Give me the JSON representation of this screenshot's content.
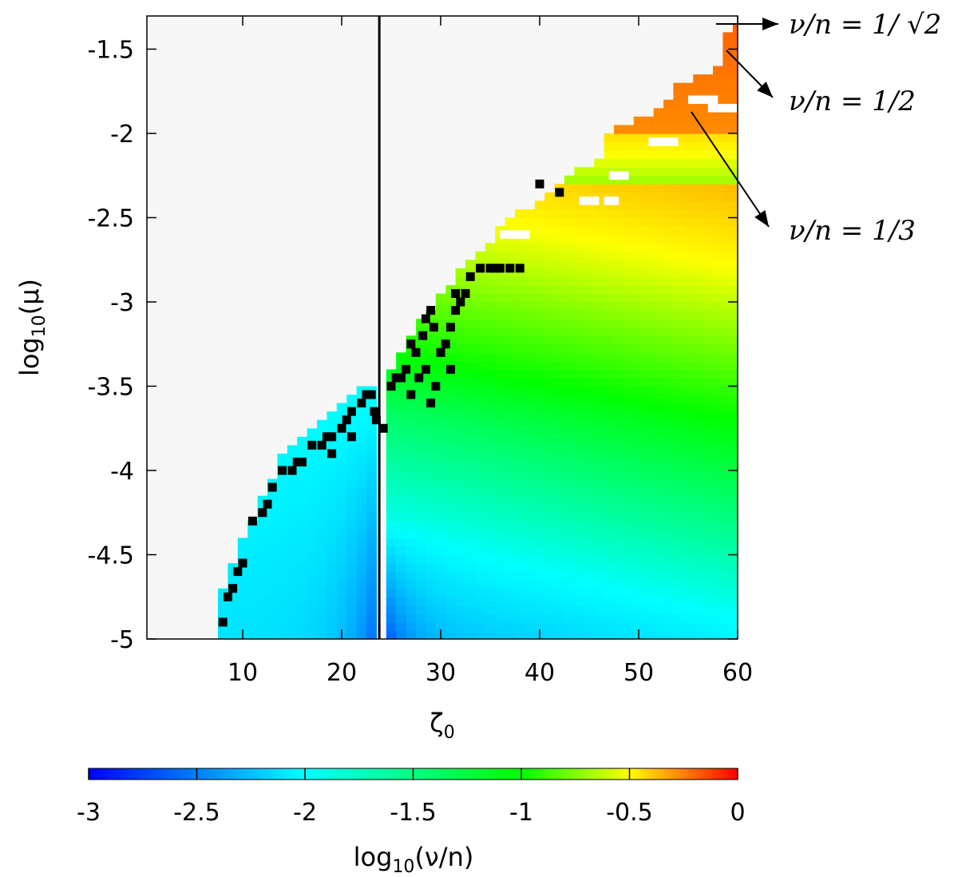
{
  "chart_data": {
    "type": "heatmap",
    "xlabel_main": "ζ",
    "xlabel_sub": "0",
    "ylabel_pre": "log",
    "ylabel_sub": "10",
    "ylabel_post": "(μ)",
    "xlim": [
      0.5,
      60
    ],
    "ylim": [
      -5,
      -1.3
    ],
    "x_ticks": [
      10,
      20,
      30,
      40,
      50,
      60
    ],
    "x_tick_labels": [
      "10",
      "20",
      "30",
      "40",
      "50",
      "60"
    ],
    "y_ticks": [
      -1.5,
      -2,
      -2.5,
      -3,
      -3.5,
      -4,
      -4.5,
      -5
    ],
    "y_tick_labels": [
      "-1.5",
      "-2",
      "-2.5",
      "-3",
      "-3.5",
      "-4",
      "-4.5",
      "-5"
    ],
    "colorbar": {
      "label_pre": "log",
      "label_sub": "10",
      "label_post": "(ν/n)",
      "range": [
        -3,
        0
      ],
      "ticks": [
        -3,
        -2.5,
        -2,
        -1.5,
        -1,
        -0.5,
        0
      ],
      "tick_labels": [
        "-3",
        "-2.5",
        "-2",
        "-1.5",
        "-1",
        "-0.5",
        "0"
      ],
      "colormap": [
        "#0000ff",
        "#00ffff",
        "#00ff00",
        "#ffff00",
        "#ff0000"
      ]
    },
    "vertical_line_x": 23.8,
    "left_region_x_range": [
      7,
      23.8
    ],
    "right_region_x_range": [
      24.5,
      60
    ],
    "left_boundary_points": [
      [
        7,
        -5
      ],
      [
        8,
        -4.75
      ],
      [
        9,
        -4.6
      ],
      [
        10,
        -4.45
      ],
      [
        11,
        -4.35
      ],
      [
        12,
        -4.2
      ],
      [
        13,
        -4.1
      ],
      [
        14,
        -3.95
      ],
      [
        15,
        -3.9
      ],
      [
        16,
        -3.85
      ],
      [
        17,
        -3.8
      ],
      [
        18,
        -3.75
      ],
      [
        19,
        -3.7
      ],
      [
        20,
        -3.65
      ],
      [
        21,
        -3.6
      ],
      [
        22,
        -3.55
      ],
      [
        23,
        -3.55
      ]
    ],
    "right_boundary_points": [
      [
        24.5,
        -3.5
      ],
      [
        25,
        -3.45
      ],
      [
        26,
        -3.35
      ],
      [
        27,
        -3.25
      ],
      [
        28,
        -3.15
      ],
      [
        29,
        -3.1
      ],
      [
        30,
        -3.0
      ],
      [
        31,
        -2.95
      ],
      [
        32,
        -2.85
      ],
      [
        33,
        -2.8
      ],
      [
        34,
        -2.75
      ],
      [
        35,
        -2.7
      ],
      [
        36,
        -2.6
      ],
      [
        37,
        -2.55
      ],
      [
        38,
        -2.5
      ],
      [
        40,
        -2.45
      ],
      [
        42,
        -2.35
      ],
      [
        44,
        -2.25
      ],
      [
        46,
        -2.2
      ],
      [
        47,
        -2.05
      ],
      [
        48,
        -2.0
      ],
      [
        50,
        -1.95
      ],
      [
        52,
        -1.9
      ],
      [
        54,
        -1.75
      ],
      [
        56,
        -1.7
      ],
      [
        58,
        -1.65
      ],
      [
        59,
        -1.45
      ],
      [
        60,
        -1.4
      ]
    ],
    "black_cells": [
      [
        8,
        -4.9
      ],
      [
        8.5,
        -4.75
      ],
      [
        9,
        -4.7
      ],
      [
        9.5,
        -4.6
      ],
      [
        10,
        -4.55
      ],
      [
        11,
        -4.3
      ],
      [
        12,
        -4.25
      ],
      [
        12.5,
        -4.2
      ],
      [
        13,
        -4.1
      ],
      [
        14,
        -4.0
      ],
      [
        15,
        -4.0
      ],
      [
        15.5,
        -3.95
      ],
      [
        16,
        -3.95
      ],
      [
        17,
        -3.85
      ],
      [
        18,
        -3.85
      ],
      [
        18.5,
        -3.8
      ],
      [
        19,
        -3.8
      ],
      [
        19,
        -3.9
      ],
      [
        20,
        -3.75
      ],
      [
        20.5,
        -3.7
      ],
      [
        21,
        -3.65
      ],
      [
        21,
        -3.8
      ],
      [
        22,
        -3.6
      ],
      [
        22.5,
        -3.55
      ],
      [
        23,
        -3.55
      ],
      [
        23.5,
        -3.7
      ],
      [
        23.3,
        -3.65
      ],
      [
        24.2,
        -3.75
      ],
      [
        25,
        -3.5
      ],
      [
        25.5,
        -3.45
      ],
      [
        26,
        -3.45
      ],
      [
        26.5,
        -3.4
      ],
      [
        27,
        -3.25
      ],
      [
        27.5,
        -3.3
      ],
      [
        27.8,
        -3.45
      ],
      [
        28.2,
        -3.2
      ],
      [
        28.5,
        -3.1
      ],
      [
        29,
        -3.05
      ],
      [
        29.3,
        -3.15
      ],
      [
        30,
        -3.3
      ],
      [
        30.5,
        -3.25
      ],
      [
        31,
        -3.15
      ],
      [
        31.5,
        -3.05
      ],
      [
        32,
        -3.0
      ],
      [
        32.5,
        -2.95
      ],
      [
        33,
        -2.85
      ],
      [
        34,
        -2.8
      ],
      [
        35,
        -2.8
      ],
      [
        35.5,
        -2.8
      ],
      [
        36,
        -2.8
      ],
      [
        37,
        -2.8
      ],
      [
        38,
        -2.8
      ],
      [
        31.5,
        -2.95
      ],
      [
        28.5,
        -3.4
      ],
      [
        29.5,
        -3.5
      ],
      [
        31,
        -3.4
      ],
      [
        27,
        -3.55
      ],
      [
        29,
        -3.6
      ],
      [
        42,
        -2.35
      ],
      [
        40,
        -2.3
      ]
    ],
    "white_gaps": [
      [
        47,
        -2.25,
        49,
        -2.25
      ],
      [
        57,
        -1.85,
        60,
        -1.85
      ],
      [
        55,
        -1.8,
        58,
        -1.8
      ],
      [
        44,
        -2.4,
        46,
        -2.4
      ],
      [
        36,
        -2.6,
        39,
        -2.6
      ],
      [
        46.5,
        -2.4,
        48,
        -2.4
      ],
      [
        51,
        -2.05,
        54,
        -2.05
      ]
    ],
    "annotations": [
      {
        "text": "ν/n = 1/ √2",
        "target_x": 58.5,
        "target_y": -1.33
      },
      {
        "text": "ν/n = 1/2",
        "target_x": 59.2,
        "target_y": -1.5
      },
      {
        "text": "ν/n = 1/3",
        "target_x": 55,
        "target_y": -1.85
      }
    ]
  }
}
